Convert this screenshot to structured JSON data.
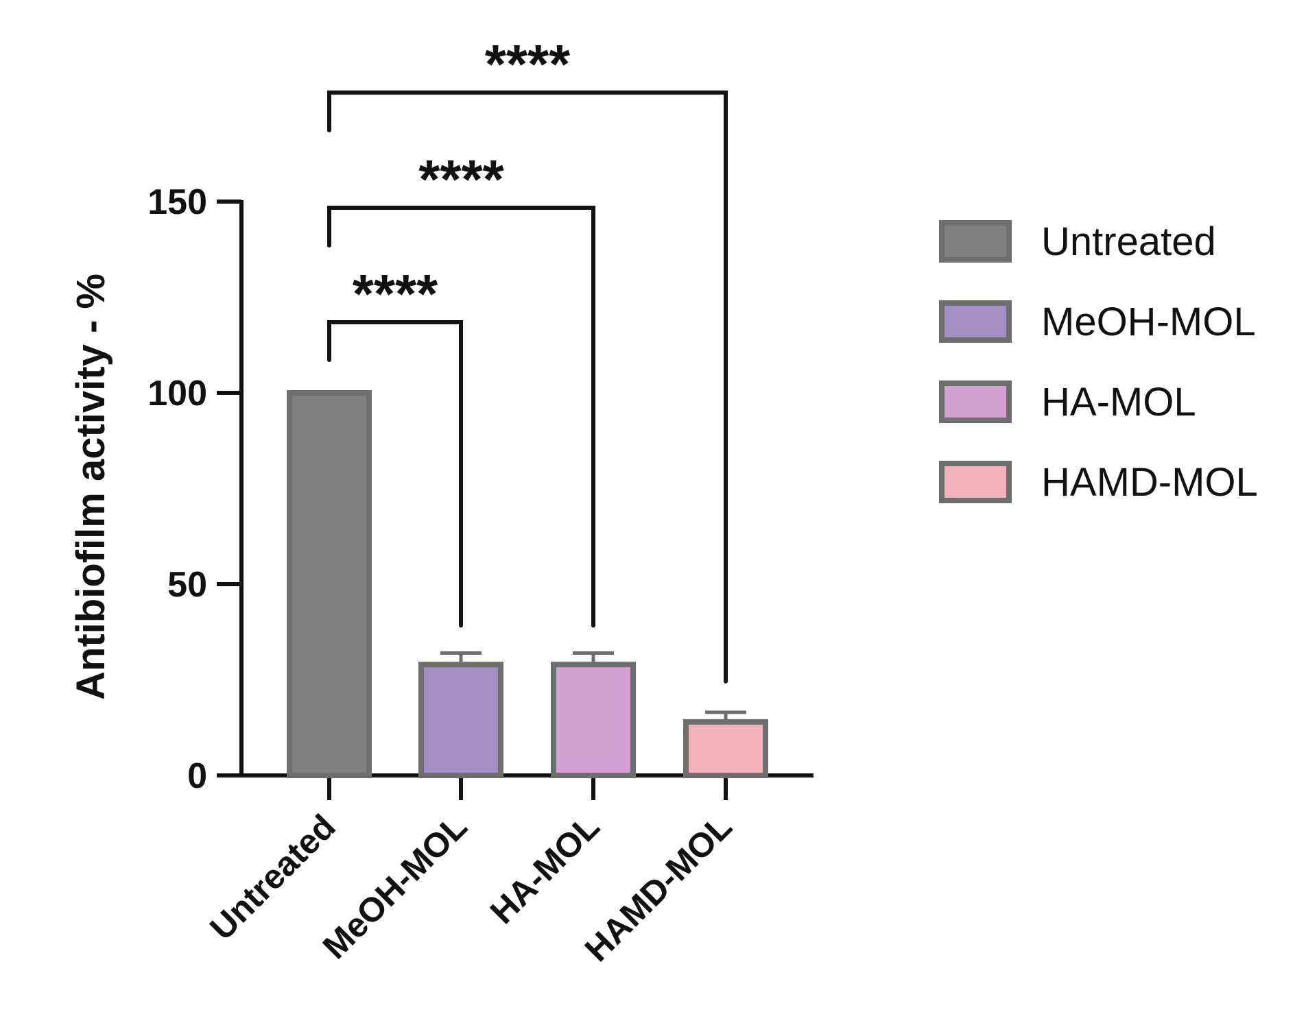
{
  "chart_data": {
    "type": "bar",
    "ylabel": "Antibiofilm activity - %",
    "xlabel": "",
    "ylim": [
      0,
      150
    ],
    "yticks": [
      0,
      50,
      100,
      150
    ],
    "categories": [
      "Untreated",
      "MeOH-MOL",
      "HA-MOL",
      "HAMD-MOL"
    ],
    "values": [
      100,
      29,
      29,
      14
    ],
    "errors": [
      0,
      3,
      3,
      2.5
    ],
    "colors": [
      "#808080",
      "#a48fc2",
      "#d4a2d2",
      "#f2b1bb"
    ],
    "edge_color": "#6e6e6e",
    "legend": {
      "position": "right",
      "entries": [
        "Untreated",
        "MeOH-MOL",
        "HA-MOL",
        "HAMD-MOL"
      ]
    },
    "significance": [
      {
        "from": "Untreated",
        "to": "MeOH-MOL",
        "label": "****"
      },
      {
        "from": "Untreated",
        "to": "HA-MOL",
        "label": "****"
      },
      {
        "from": "Untreated",
        "to": "HAMD-MOL",
        "label": "****"
      }
    ],
    "grid": false
  }
}
